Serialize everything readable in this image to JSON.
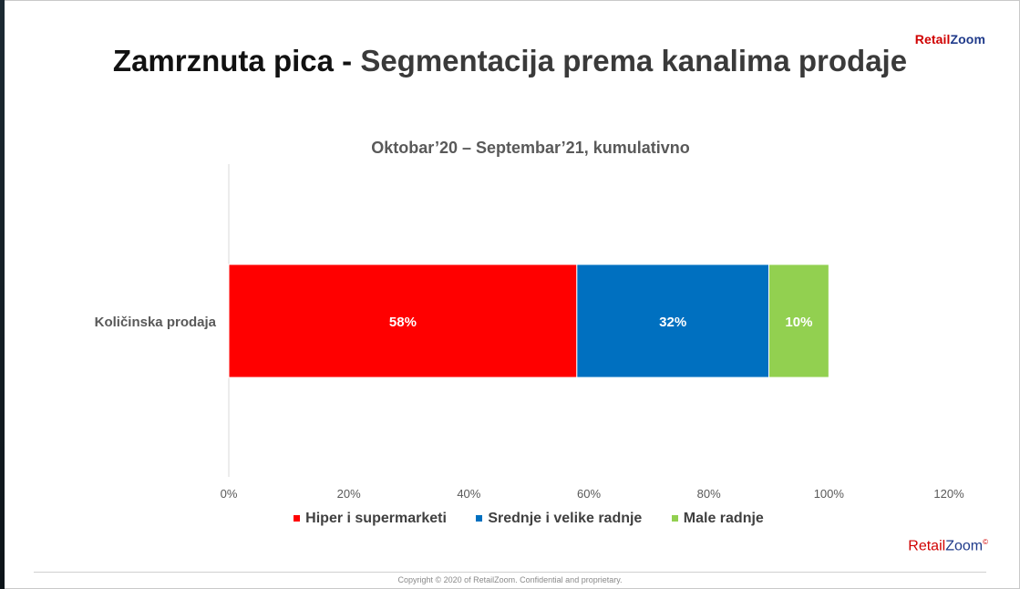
{
  "slide": {
    "brand_top_red": "Retail",
    "brand_top_blue": "Zoom",
    "title_part1": "Zamrznuta pica - ",
    "title_part2": "Segmentacija prema kanalima prodaje",
    "brand_bottom_red": "Retail",
    "brand_bottom_blue": "Zoom",
    "brand_bottom_mark": "©",
    "copyright": "Copyright © 2020 of RetailZoom. Confidential and proprietary."
  },
  "colors": {
    "hiper": "#ff0000",
    "srednje": "#0070c0",
    "male": "#92d050",
    "axis": "#d9d9d9",
    "tick_text": "#595959"
  },
  "chart_data": {
    "type": "bar",
    "orientation": "horizontal",
    "stacked": true,
    "title": "Oktobar’20 – Septembar’21, kumulativno",
    "categories": [
      "Količinska prodaja"
    ],
    "series": [
      {
        "name": "Hiper i supermarketi",
        "values": [
          58
        ],
        "label": "58%",
        "color": "#ff0000"
      },
      {
        "name": "Srednje i velike radnje",
        "values": [
          32
        ],
        "label": "32%",
        "color": "#0070c0"
      },
      {
        "name": "Male radnje",
        "values": [
          10
        ],
        "label": "10%",
        "color": "#92d050"
      }
    ],
    "xlim": [
      0,
      120
    ],
    "xticks": [
      "0%",
      "20%",
      "40%",
      "60%",
      "80%",
      "100%",
      "120%"
    ],
    "xtick_values": [
      0,
      20,
      40,
      60,
      80,
      100,
      120
    ],
    "grid": false,
    "legend": "bottom"
  }
}
